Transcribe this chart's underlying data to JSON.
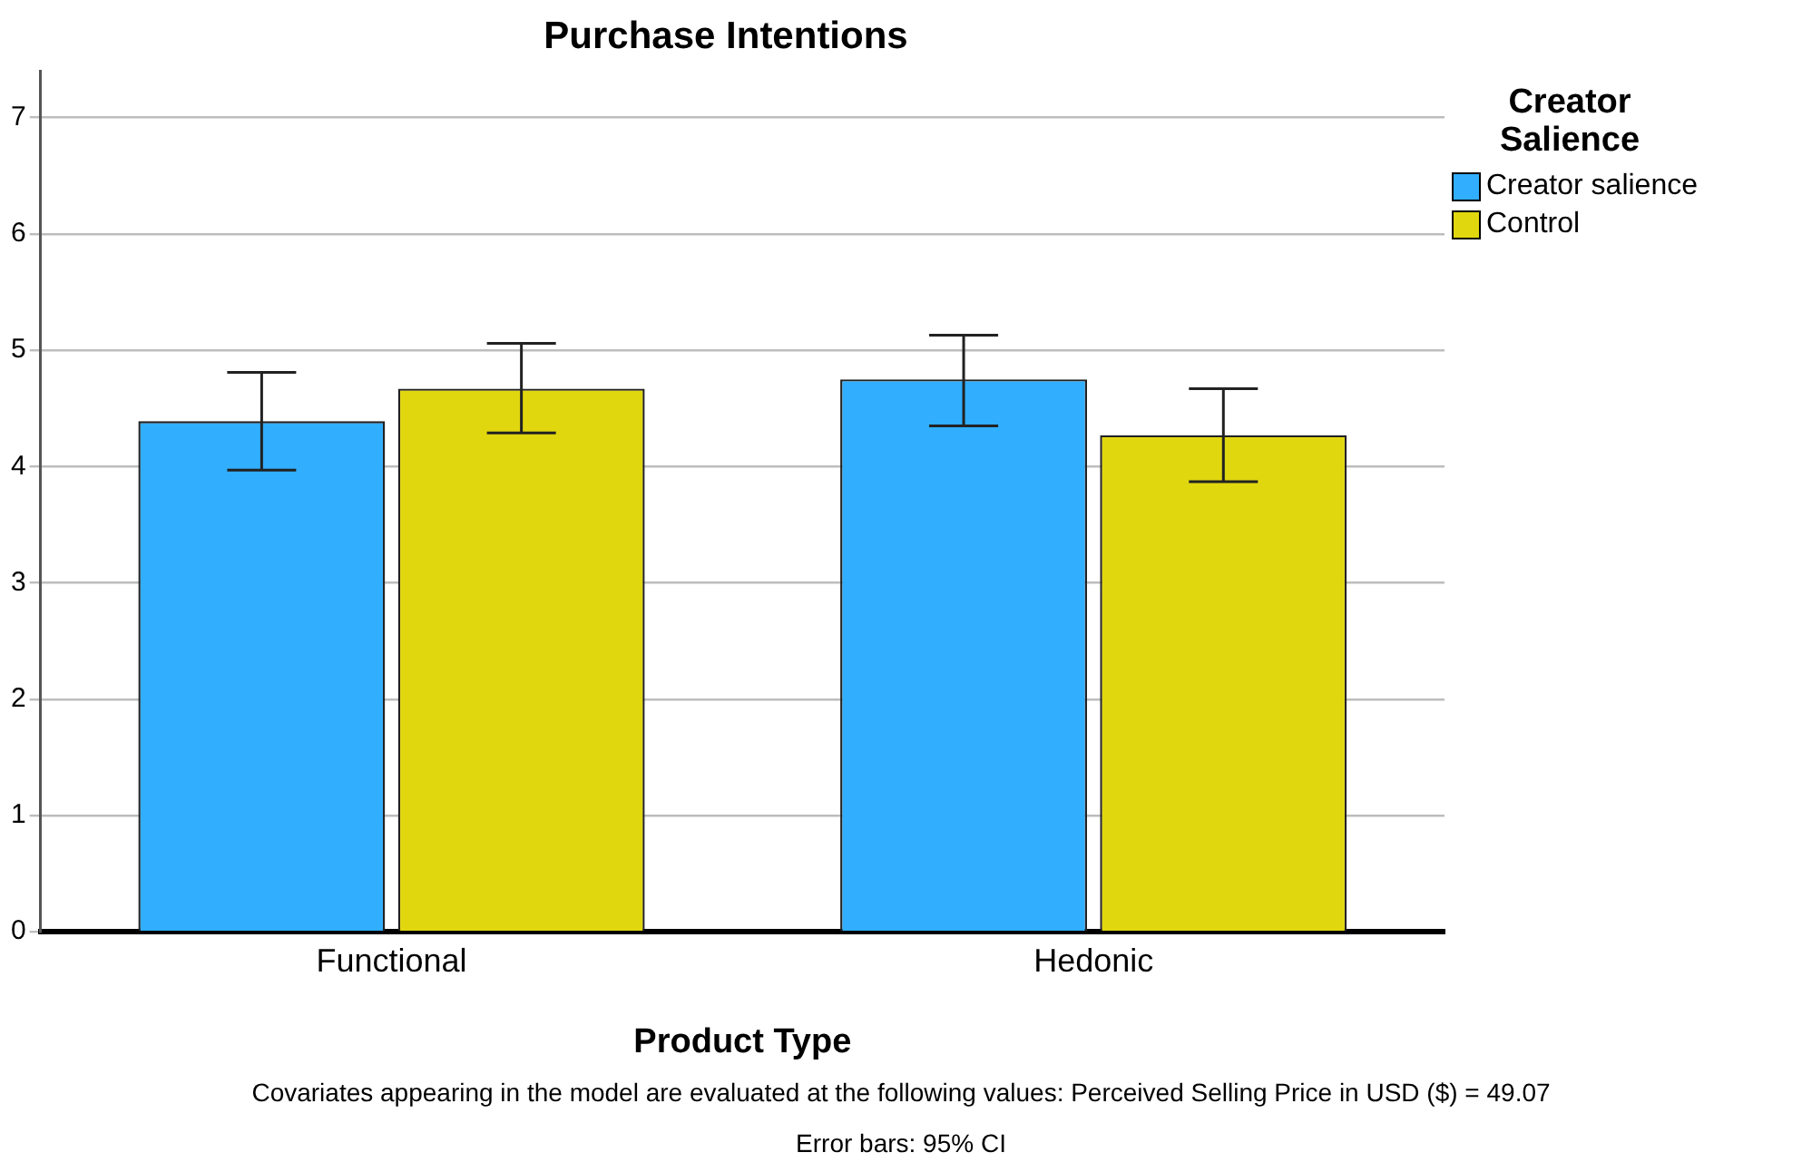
{
  "chart_data": {
    "type": "bar",
    "title": "Purchase Intentions",
    "xlabel": "Product Type",
    "legend_title": "Creator Salience",
    "categories": [
      "Functional",
      "Hedonic"
    ],
    "series": [
      {
        "name": "Creator salience",
        "color": "#31aefe",
        "values": [
          4.39,
          4.75
        ],
        "errors": [
          [
            3.97,
            4.81
          ],
          [
            4.35,
            5.13
          ]
        ]
      },
      {
        "name": "Control",
        "color": "#e1d70f",
        "values": [
          4.67,
          4.27
        ],
        "errors": [
          [
            4.29,
            5.06
          ],
          [
            3.87,
            4.67
          ]
        ]
      }
    ],
    "ylim": [
      0,
      7.4
    ],
    "yticks": [
      0,
      1,
      2,
      3,
      4,
      5,
      6,
      7
    ],
    "grid": "y",
    "legend": "top right",
    "annotations": [
      "Covariates appearing in the model are evaluated at the following values: Perceived Selling Price in USD ($) = 49.07",
      "Error bars: 95% CI"
    ]
  }
}
